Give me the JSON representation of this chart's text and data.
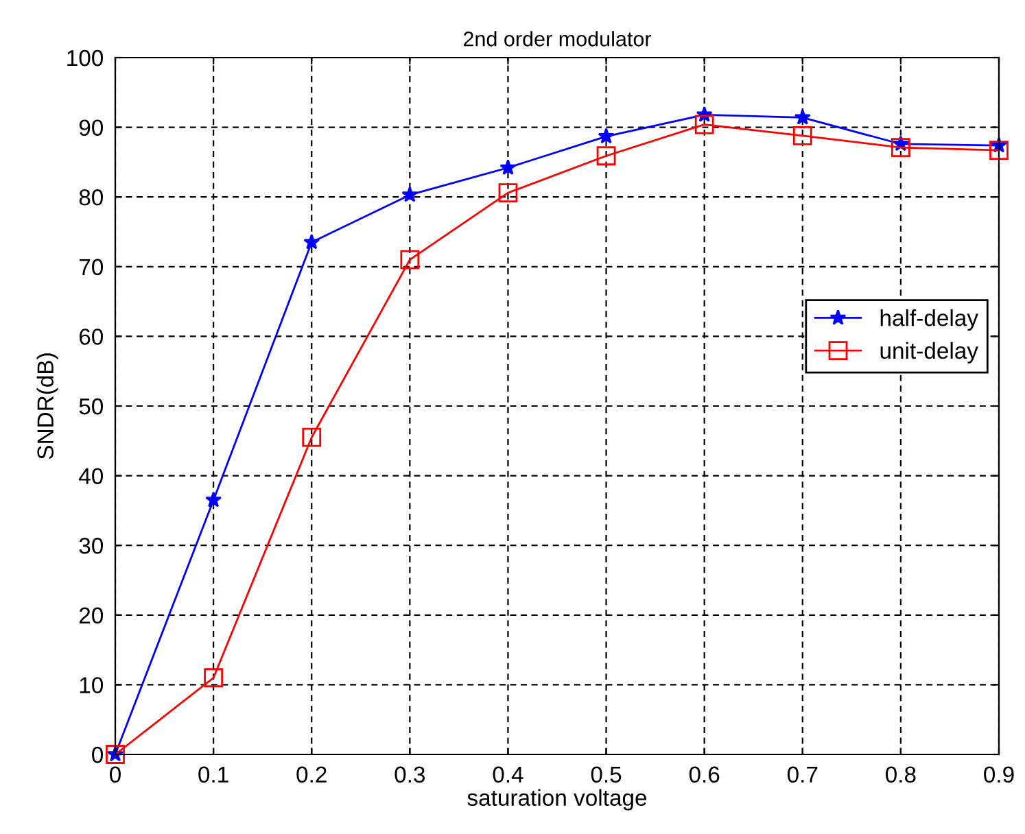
{
  "chart_data": {
    "type": "line",
    "title": "2nd order modulator",
    "xlabel": "saturation voltage",
    "ylabel": "SNDR(dB)",
    "x": [
      0,
      0.1,
      0.2,
      0.3,
      0.4,
      0.5,
      0.6,
      0.7,
      0.8,
      0.9
    ],
    "series": [
      {
        "name": "half-delay",
        "color": "#0000ff",
        "marker": "star",
        "values": [
          0,
          36.5,
          73.5,
          80.3,
          84.2,
          88.7,
          91.8,
          91.4,
          87.6,
          87.4
        ]
      },
      {
        "name": "unit-delay",
        "color": "#ff0000",
        "marker": "square",
        "values": [
          0,
          11,
          45.5,
          71,
          80.6,
          85.9,
          90.4,
          88.8,
          87.1,
          86.7
        ]
      }
    ],
    "xlim": [
      0,
      0.9
    ],
    "xticks": [
      0,
      0.1,
      0.2,
      0.3,
      0.4,
      0.5,
      0.6,
      0.7,
      0.8,
      0.9
    ],
    "ylim": [
      0,
      100
    ],
    "yticks": [
      0,
      10,
      20,
      30,
      40,
      50,
      60,
      70,
      80,
      90,
      100
    ],
    "grid": true,
    "legend": "right",
    "line_style": "solid"
  }
}
